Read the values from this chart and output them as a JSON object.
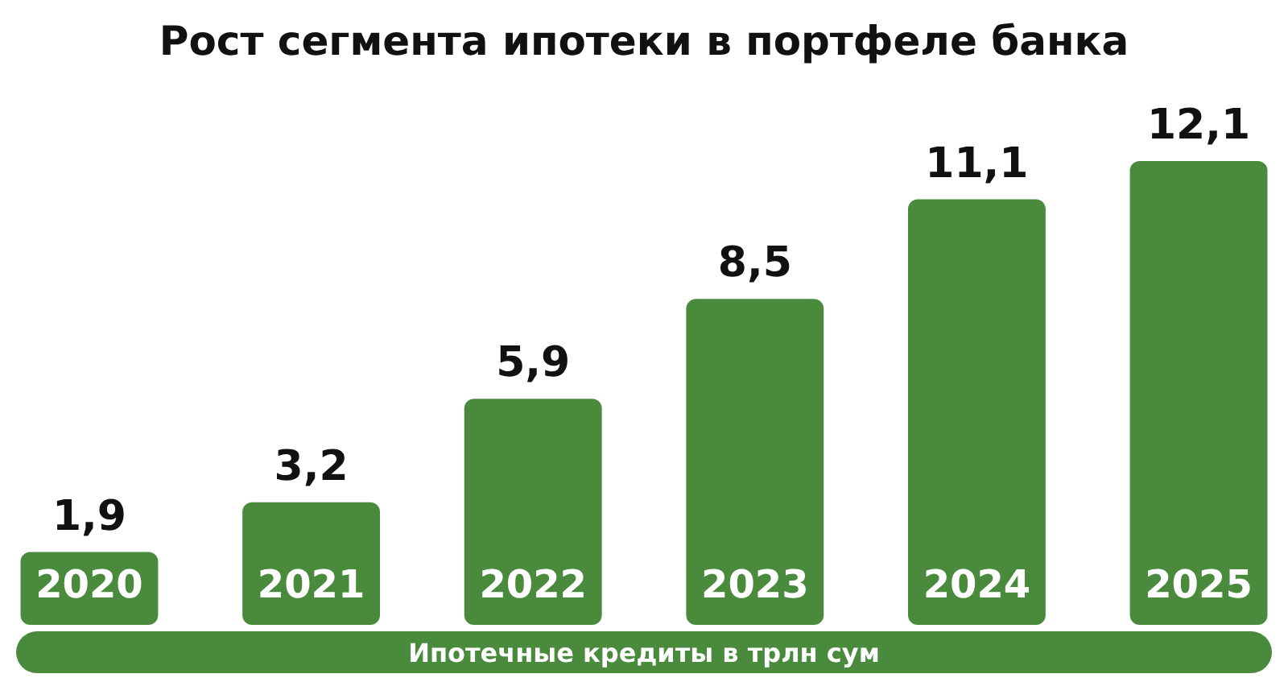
{
  "chart_data": {
    "type": "bar",
    "title": "Рост сегмента ипотеки в портфеле банка",
    "xlabel": "Ипотечные кредиты в трлн сум",
    "categories": [
      "2020",
      "2021",
      "2022",
      "2023",
      "2024",
      "2025"
    ],
    "values": [
      1.9,
      3.2,
      5.9,
      8.5,
      11.1,
      12.1
    ],
    "value_labels": [
      "1,9",
      "3,2",
      "5,9",
      "8,5",
      "11,1",
      "12,1"
    ],
    "color": "#4a8a3c"
  }
}
